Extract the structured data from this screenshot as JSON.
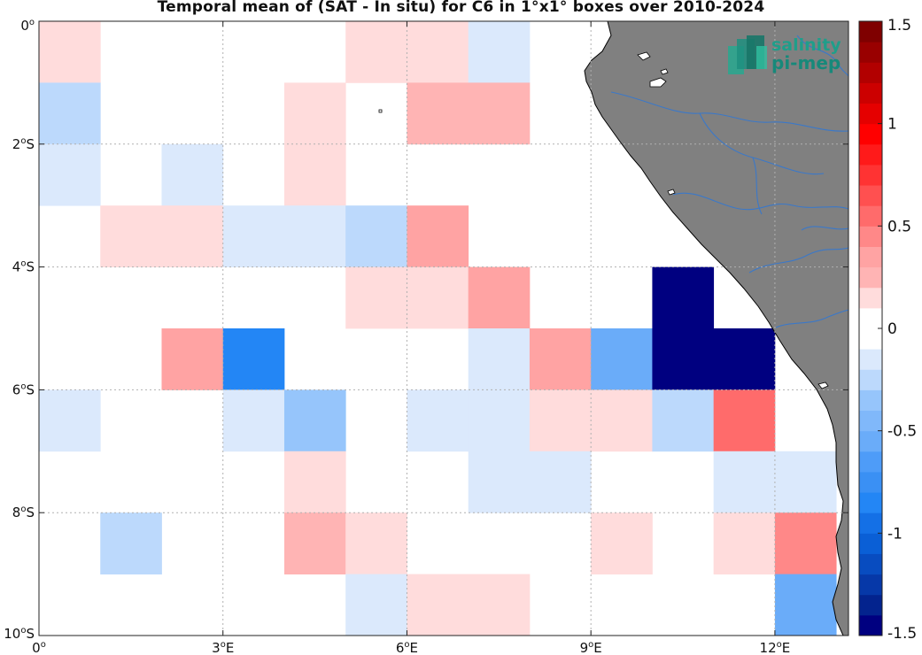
{
  "title": "Temporal mean of (SAT - In situ) for C6 in 1°x1° boxes over 2010-2024",
  "logo": {
    "line1": "salinity",
    "line2": "pi-mep"
  },
  "map_axes": {
    "lon_range": [
      0,
      13.2
    ],
    "lat_range": [
      -10,
      0
    ],
    "x_ticks": [
      {
        "value": 0,
        "label": "0",
        "sup": "o",
        "suffix": ""
      },
      {
        "value": 3,
        "label": "3",
        "sup": "o",
        "suffix": "E"
      },
      {
        "value": 6,
        "label": "6",
        "sup": "o",
        "suffix": "E"
      },
      {
        "value": 9,
        "label": "9",
        "sup": "o",
        "suffix": "E"
      },
      {
        "value": 12,
        "label": "12",
        "sup": "o",
        "suffix": "E"
      }
    ],
    "y_ticks": [
      {
        "value": 0,
        "label": "0",
        "sup": "o",
        "suffix": ""
      },
      {
        "value": -2,
        "label": "2",
        "sup": "o",
        "suffix": "S"
      },
      {
        "value": -4,
        "label": "4",
        "sup": "o",
        "suffix": "S"
      },
      {
        "value": -6,
        "label": "6",
        "sup": "o",
        "suffix": "S"
      },
      {
        "value": -8,
        "label": "8",
        "sup": "o",
        "suffix": "S"
      },
      {
        "value": -10,
        "label": "10",
        "sup": "o",
        "suffix": "S"
      }
    ],
    "grid": "dotted"
  },
  "colorbar": {
    "range": [
      -1.5,
      1.5
    ],
    "levels": 26,
    "white_band": [
      -0.1,
      0.1
    ],
    "ticks": [
      {
        "value": 1.5,
        "label": "1.5"
      },
      {
        "value": 1,
        "label": "1"
      },
      {
        "value": 0.5,
        "label": "0.5"
      },
      {
        "value": 0,
        "label": "0"
      },
      {
        "value": -0.5,
        "label": "-0.5"
      },
      {
        "value": -1,
        "label": "-1"
      },
      {
        "value": -1.5,
        "label": "-1.5"
      }
    ]
  },
  "colors": {
    "land": "#808080",
    "river": "#3b78c8",
    "grid": "#b0b0b0"
  },
  "chart_data": {
    "type": "heatmap",
    "cell_size_deg": 1,
    "units": "SAT - In situ",
    "cells": [
      {
        "lon": 0,
        "lat": 0,
        "value": 0.17
      },
      {
        "lon": 0,
        "lat": -1,
        "value": -0.27
      },
      {
        "lon": 0,
        "lat": -2,
        "value": -0.16
      },
      {
        "lon": 0,
        "lat": -6,
        "value": -0.16
      },
      {
        "lon": 1,
        "lat": -3,
        "value": 0.17
      },
      {
        "lon": 1,
        "lat": -8,
        "value": -0.22
      },
      {
        "lon": 2,
        "lat": -2,
        "value": -0.16
      },
      {
        "lon": 2,
        "lat": -3,
        "value": 0.17
      },
      {
        "lon": 2,
        "lat": -5,
        "value": 0.32
      },
      {
        "lon": 3,
        "lat": -3,
        "value": -0.16
      },
      {
        "lon": 3,
        "lat": -5,
        "value": -0.85
      },
      {
        "lon": 3,
        "lat": -6,
        "value": -0.16
      },
      {
        "lon": 4,
        "lat": -1,
        "value": 0.17
      },
      {
        "lon": 4,
        "lat": -2,
        "value": 0.17
      },
      {
        "lon": 4,
        "lat": -3,
        "value": -0.16
      },
      {
        "lon": 4,
        "lat": -6,
        "value": -0.38
      },
      {
        "lon": 4,
        "lat": -7,
        "value": 0.17
      },
      {
        "lon": 4,
        "lat": -8,
        "value": 0.28
      },
      {
        "lon": 5,
        "lat": 0,
        "value": 0.17
      },
      {
        "lon": 5,
        "lat": -3,
        "value": -0.27
      },
      {
        "lon": 5,
        "lat": -4,
        "value": 0.17
      },
      {
        "lon": 5,
        "lat": -8,
        "value": 0.17
      },
      {
        "lon": 5,
        "lat": -9,
        "value": -0.16
      },
      {
        "lon": 6,
        "lat": 0,
        "value": 0.17
      },
      {
        "lon": 6,
        "lat": -1,
        "value": 0.28
      },
      {
        "lon": 6,
        "lat": -3,
        "value": 0.32
      },
      {
        "lon": 6,
        "lat": -4,
        "value": 0.17
      },
      {
        "lon": 6,
        "lat": -6,
        "value": -0.16
      },
      {
        "lon": 6,
        "lat": -9,
        "value": 0.17
      },
      {
        "lon": 7,
        "lat": 0,
        "value": -0.16
      },
      {
        "lon": 7,
        "lat": -1,
        "value": 0.28
      },
      {
        "lon": 7,
        "lat": -4,
        "value": 0.32
      },
      {
        "lon": 7,
        "lat": -5,
        "value": -0.16
      },
      {
        "lon": 7,
        "lat": -6,
        "value": -0.16
      },
      {
        "lon": 7,
        "lat": -7,
        "value": -0.16
      },
      {
        "lon": 7,
        "lat": -9,
        "value": 0.17
      },
      {
        "lon": 8,
        "lat": -5,
        "value": 0.32
      },
      {
        "lon": 8,
        "lat": -6,
        "value": 0.17
      },
      {
        "lon": 8,
        "lat": -7,
        "value": -0.16
      },
      {
        "lon": 9,
        "lat": -5,
        "value": -0.55
      },
      {
        "lon": 9,
        "lat": -6,
        "value": 0.17
      },
      {
        "lon": 9,
        "lat": -8,
        "value": 0.17
      },
      {
        "lon": 10,
        "lat": -4,
        "value": -1.5
      },
      {
        "lon": 10,
        "lat": -5,
        "value": -1.5
      },
      {
        "lon": 10,
        "lat": -6,
        "value": -0.27
      },
      {
        "lon": 11,
        "lat": -5,
        "value": -1.5
      },
      {
        "lon": 11,
        "lat": -6,
        "value": 0.55
      },
      {
        "lon": 11,
        "lat": -7,
        "value": -0.16
      },
      {
        "lon": 11,
        "lat": -8,
        "value": 0.17
      },
      {
        "lon": 12,
        "lat": -7,
        "value": -0.16
      },
      {
        "lon": 12,
        "lat": -8,
        "value": 0.45
      },
      {
        "lon": 12,
        "lat": -9,
        "value": -0.55
      }
    ]
  }
}
